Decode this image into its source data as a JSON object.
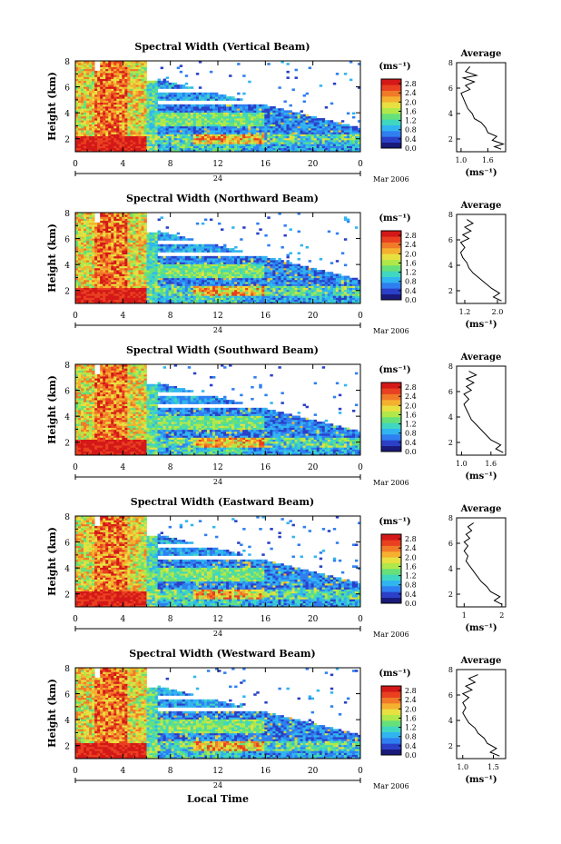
{
  "figure": {
    "xaxis_label": "Local Time",
    "date_label": "Mar 2006",
    "day_label": "24",
    "colorbar_unit": "(ms⁻¹)",
    "average_title": "Average",
    "average_xlabel": "(ms⁻¹)"
  },
  "colorbar": {
    "ticks": [
      "0.0",
      "0.4",
      "0.8",
      "1.2",
      "1.6",
      "2.0",
      "2.4",
      "2.8"
    ],
    "colors": [
      "#1a1a7a",
      "#2a40c8",
      "#2f7ff0",
      "#31b5f0",
      "#3fd7c0",
      "#66e07a",
      "#b0e84a",
      "#e8e040",
      "#f5b030",
      "#f07a28",
      "#e84020",
      "#d41818"
    ]
  },
  "chart_data": [
    {
      "type": "heatmap",
      "title": "Spectral Width (Vertical Beam)",
      "ylabel": "Height (km)",
      "xlabel": "",
      "x_ticks": [
        "0",
        "4",
        "8",
        "12",
        "16",
        "20",
        "0"
      ],
      "xlim": [
        0,
        24
      ],
      "y_ticks": [
        "2",
        "4",
        "6",
        "8"
      ],
      "ylim": [
        1,
        8
      ],
      "zlim": [
        0,
        3.0
      ],
      "average_profile": {
        "x_ticks": [
          "1.0",
          "1.6"
        ],
        "xlim": [
          0.9,
          2.0
        ],
        "y_ticks": [
          "2",
          "4",
          "6",
          "8"
        ],
        "ylim": [
          1,
          8
        ],
        "points": [
          [
            1.9,
            1.2
          ],
          [
            1.75,
            1.4
          ],
          [
            1.95,
            1.6
          ],
          [
            1.7,
            1.9
          ],
          [
            1.8,
            2.2
          ],
          [
            1.6,
            2.5
          ],
          [
            1.55,
            2.9
          ],
          [
            1.45,
            3.3
          ],
          [
            1.3,
            3.6
          ],
          [
            1.25,
            4.0
          ],
          [
            1.15,
            4.4
          ],
          [
            1.1,
            4.8
          ],
          [
            1.05,
            5.2
          ],
          [
            1.0,
            5.6
          ],
          [
            1.2,
            5.9
          ],
          [
            1.1,
            6.2
          ],
          [
            1.3,
            6.5
          ],
          [
            1.05,
            6.8
          ],
          [
            1.35,
            7.0
          ],
          [
            1.1,
            7.3
          ],
          [
            1.2,
            7.7
          ]
        ]
      }
    },
    {
      "type": "heatmap",
      "title": "Spectral Width (Northward Beam)",
      "ylabel": "Height (km)",
      "xlabel": "",
      "x_ticks": [
        "0",
        "4",
        "8",
        "12",
        "16",
        "20",
        "0"
      ],
      "xlim": [
        0,
        24
      ],
      "y_ticks": [
        "2",
        "4",
        "6",
        "8"
      ],
      "ylim": [
        1,
        8
      ],
      "zlim": [
        0,
        3.0
      ],
      "average_profile": {
        "x_ticks": [
          "1.2",
          "2.0"
        ],
        "xlim": [
          1.0,
          2.2
        ],
        "y_ticks": [
          "2",
          "4",
          "6",
          "8"
        ],
        "ylim": [
          1,
          8
        ],
        "points": [
          [
            2.1,
            1.2
          ],
          [
            1.9,
            1.5
          ],
          [
            2.05,
            1.8
          ],
          [
            1.85,
            2.2
          ],
          [
            1.7,
            2.6
          ],
          [
            1.55,
            3.0
          ],
          [
            1.4,
            3.4
          ],
          [
            1.3,
            3.8
          ],
          [
            1.25,
            4.2
          ],
          [
            1.15,
            4.6
          ],
          [
            1.1,
            5.0
          ],
          [
            1.2,
            5.4
          ],
          [
            1.1,
            5.8
          ],
          [
            1.3,
            6.1
          ],
          [
            1.15,
            6.4
          ],
          [
            1.35,
            6.7
          ],
          [
            1.2,
            7.0
          ],
          [
            1.4,
            7.3
          ],
          [
            1.25,
            7.6
          ]
        ]
      }
    },
    {
      "type": "heatmap",
      "title": "Spectral Width (Southward Beam)",
      "ylabel": "Height (km)",
      "xlabel": "",
      "x_ticks": [
        "0",
        "4",
        "8",
        "12",
        "16",
        "20",
        "0"
      ],
      "xlim": [
        0,
        24
      ],
      "y_ticks": [
        "2",
        "4",
        "6",
        "8"
      ],
      "ylim": [
        1,
        8
      ],
      "zlim": [
        0,
        3.0
      ],
      "average_profile": {
        "x_ticks": [
          "1.0",
          "1.6"
        ],
        "xlim": [
          0.9,
          1.9
        ],
        "y_ticks": [
          "2",
          "4",
          "6",
          "8"
        ],
        "ylim": [
          1,
          8
        ],
        "points": [
          [
            1.85,
            1.2
          ],
          [
            1.7,
            1.5
          ],
          [
            1.8,
            1.8
          ],
          [
            1.6,
            2.2
          ],
          [
            1.5,
            2.6
          ],
          [
            1.4,
            3.0
          ],
          [
            1.3,
            3.4
          ],
          [
            1.2,
            3.8
          ],
          [
            1.15,
            4.2
          ],
          [
            1.1,
            4.6
          ],
          [
            1.05,
            5.0
          ],
          [
            1.15,
            5.4
          ],
          [
            1.05,
            5.8
          ],
          [
            1.2,
            6.1
          ],
          [
            1.1,
            6.4
          ],
          [
            1.25,
            6.7
          ],
          [
            1.1,
            7.0
          ],
          [
            1.3,
            7.3
          ],
          [
            1.15,
            7.6
          ]
        ]
      }
    },
    {
      "type": "heatmap",
      "title": "Spectral Width (Eastward Beam)",
      "ylabel": "Height (km)",
      "xlabel": "",
      "x_ticks": [
        "0",
        "4",
        "8",
        "12",
        "16",
        "20",
        "0"
      ],
      "xlim": [
        0,
        24
      ],
      "y_ticks": [
        "2",
        "4",
        "6",
        "8"
      ],
      "ylim": [
        1,
        8
      ],
      "zlim": [
        0,
        3.0
      ],
      "average_profile": {
        "x_ticks": [
          "1",
          "2"
        ],
        "xlim": [
          0.8,
          2.1
        ],
        "y_ticks": [
          "2",
          "4",
          "6",
          "8"
        ],
        "ylim": [
          1,
          8
        ],
        "points": [
          [
            2.0,
            1.2
          ],
          [
            1.8,
            1.5
          ],
          [
            1.95,
            1.8
          ],
          [
            1.7,
            2.2
          ],
          [
            1.6,
            2.6
          ],
          [
            1.45,
            3.0
          ],
          [
            1.35,
            3.4
          ],
          [
            1.25,
            3.8
          ],
          [
            1.15,
            4.2
          ],
          [
            1.05,
            4.6
          ],
          [
            1.1,
            5.0
          ],
          [
            1.0,
            5.4
          ],
          [
            1.1,
            5.8
          ],
          [
            1.0,
            6.1
          ],
          [
            1.15,
            6.4
          ],
          [
            1.05,
            6.7
          ],
          [
            1.2,
            7.0
          ],
          [
            1.1,
            7.3
          ],
          [
            1.25,
            7.6
          ]
        ]
      }
    },
    {
      "type": "heatmap",
      "title": "Spectral Width (Westward Beam)",
      "ylabel": "Height (km)",
      "xlabel": "Local Time",
      "x_ticks": [
        "0",
        "4",
        "8",
        "12",
        "16",
        "20",
        "0"
      ],
      "xlim": [
        0,
        24
      ],
      "y_ticks": [
        "2",
        "4",
        "6",
        "8"
      ],
      "ylim": [
        1,
        8
      ],
      "zlim": [
        0,
        3.0
      ],
      "average_profile": {
        "x_ticks": [
          "1.0",
          "1.5"
        ],
        "xlim": [
          0.9,
          1.7
        ],
        "y_ticks": [
          "2",
          "4",
          "6",
          "8"
        ],
        "ylim": [
          1,
          8
        ],
        "points": [
          [
            1.6,
            1.2
          ],
          [
            1.45,
            1.5
          ],
          [
            1.55,
            1.8
          ],
          [
            1.4,
            2.2
          ],
          [
            1.35,
            2.6
          ],
          [
            1.25,
            3.0
          ],
          [
            1.2,
            3.4
          ],
          [
            1.1,
            3.8
          ],
          [
            1.05,
            4.2
          ],
          [
            1.0,
            4.6
          ],
          [
            1.05,
            5.0
          ],
          [
            1.0,
            5.4
          ],
          [
            1.1,
            5.8
          ],
          [
            1.0,
            6.1
          ],
          [
            1.15,
            6.4
          ],
          [
            1.05,
            6.7
          ],
          [
            1.2,
            7.0
          ],
          [
            1.1,
            7.3
          ],
          [
            1.25,
            7.6
          ]
        ]
      }
    }
  ]
}
